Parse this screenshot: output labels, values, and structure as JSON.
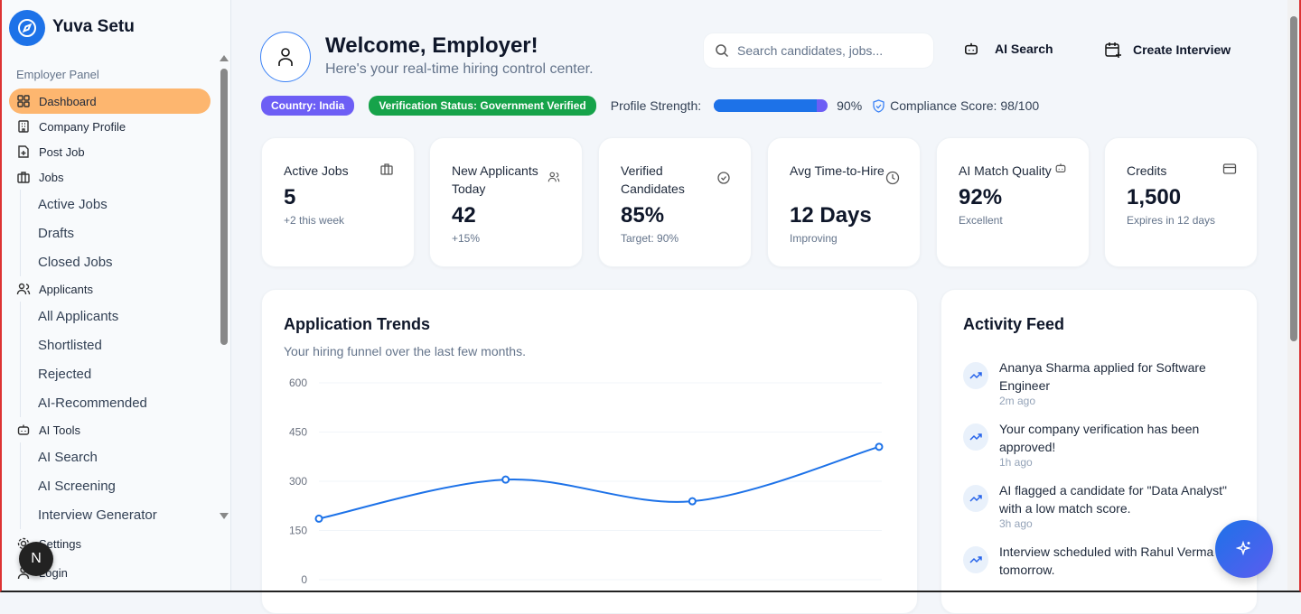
{
  "app": {
    "name": "Yuva Setu",
    "logo_icon": "compass-icon"
  },
  "sidebar": {
    "panel_label": "Employer Panel",
    "items": [
      {
        "label": "Dashboard",
        "icon": "grid-icon",
        "active": true
      },
      {
        "label": "Company Profile",
        "icon": "building-icon"
      },
      {
        "label": "Post Job",
        "icon": "file-plus-icon"
      },
      {
        "label": "Jobs",
        "icon": "briefcase-icon",
        "children": [
          "Active Jobs",
          "Drafts",
          "Closed Jobs"
        ]
      },
      {
        "label": "Applicants",
        "icon": "users-icon",
        "children": [
          "All Applicants",
          "Shortlisted",
          "Rejected",
          "AI-Recommended"
        ]
      },
      {
        "label": "AI Tools",
        "icon": "bot-icon",
        "children": [
          "AI Search",
          "AI Screening",
          "Interview Generator"
        ]
      },
      {
        "label": "Settings",
        "icon": "gear-icon"
      },
      {
        "label": "Login",
        "icon": "user-icon"
      }
    ],
    "fab_letter": "N"
  },
  "header": {
    "title": "Welcome, Employer!",
    "subtitle": "Here's your real-time hiring control center.",
    "search_placeholder": "Search candidates, jobs...",
    "ai_search": "AI Search",
    "create_interview": "Create Interview"
  },
  "status": {
    "country": "Country: India",
    "verification": "Verification Status: Government Verified",
    "profile_strength_label": "Profile Strength:",
    "profile_strength": 90,
    "profile_strength_text": "90%",
    "compliance": "Compliance Score: 98/100",
    "colors": {
      "country": "#6d5ef5",
      "verification": "#16a34a",
      "progress": "#1d72e8"
    }
  },
  "stats": [
    {
      "label": "Active Jobs",
      "value": "5",
      "note": "+2 this week",
      "icon": "briefcase-icon"
    },
    {
      "label": "New Applicants Today",
      "value": "42",
      "note": "+15%",
      "icon": "users-icon"
    },
    {
      "label": "Verified Candidates",
      "value": "85%",
      "note": "Target: 90%",
      "icon": "check-circle-icon"
    },
    {
      "label": "Avg Time-to-Hire",
      "value": "12 Days",
      "note": "Improving",
      "icon": "clock-icon"
    },
    {
      "label": "AI Match Quality",
      "value": "92%",
      "note": "Excellent",
      "icon": "bot-icon"
    },
    {
      "label": "Credits",
      "value": "1,500",
      "note": "Expires in 12 days",
      "icon": "credit-card-icon"
    }
  ],
  "trends": {
    "title": "Application Trends",
    "subtitle": "Your hiring funnel over the last few months."
  },
  "chart_data": {
    "type": "line",
    "title": "Application Trends",
    "yticks": [
      "600",
      "450",
      "300",
      "150",
      "0"
    ],
    "ylim": [
      0,
      600
    ],
    "grid": true,
    "series": [
      {
        "values": [
          186,
          305,
          239,
          405
        ],
        "color": "#1d72e8"
      }
    ]
  },
  "activity": {
    "title": "Activity Feed",
    "items": [
      {
        "text": "Ananya Sharma applied for Software Engineer",
        "time": "2m ago"
      },
      {
        "text": "Your company verification has been approved!",
        "time": "1h ago"
      },
      {
        "text": "AI flagged a candidate for \"Data Analyst\" with a low match score.",
        "time": "3h ago"
      },
      {
        "text": "Interview scheduled with Rahul Verma for tomorrow.",
        "time": ""
      }
    ]
  }
}
